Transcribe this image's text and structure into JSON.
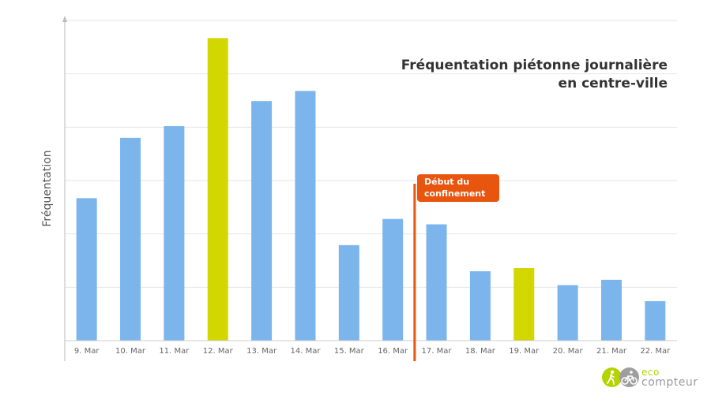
{
  "chart_data": {
    "type": "bar",
    "title_lines": [
      "Fréquentation piétonne journalière",
      "en centre-ville"
    ],
    "ylabel": "Fréquentation",
    "xlabel": "",
    "categories": [
      "9. Mar",
      "10. Mar",
      "11. Mar",
      "12. Mar",
      "13. Mar",
      "14. Mar",
      "15. Mar",
      "16. Mar",
      "17. Mar",
      "18. Mar",
      "19. Mar",
      "20. Mar",
      "21. Mar",
      "22. Mar"
    ],
    "values": [
      2.67,
      3.8,
      4.02,
      5.67,
      4.49,
      4.68,
      1.79,
      2.28,
      2.18,
      1.3,
      1.36,
      1.04,
      1.14,
      0.74
    ],
    "highlighted_categories": [
      "12. Mar",
      "19. Mar"
    ],
    "ylim": [
      0,
      6
    ],
    "grid": true,
    "legend": "none",
    "annotation": {
      "lines": [
        "Début du",
        "confinement"
      ],
      "between": [
        "16. Mar",
        "17. Mar"
      ]
    },
    "colors": {
      "bar": "#7cb5ec",
      "highlight": "#d2d700",
      "marker": "#e8550f",
      "grid": "#e6e6e6",
      "axis": "#cccccc"
    }
  },
  "logo": {
    "line1": "eco",
    "line2": "compteur",
    "colors": {
      "green": "#b4d400",
      "gray": "#9e9e9e"
    }
  }
}
